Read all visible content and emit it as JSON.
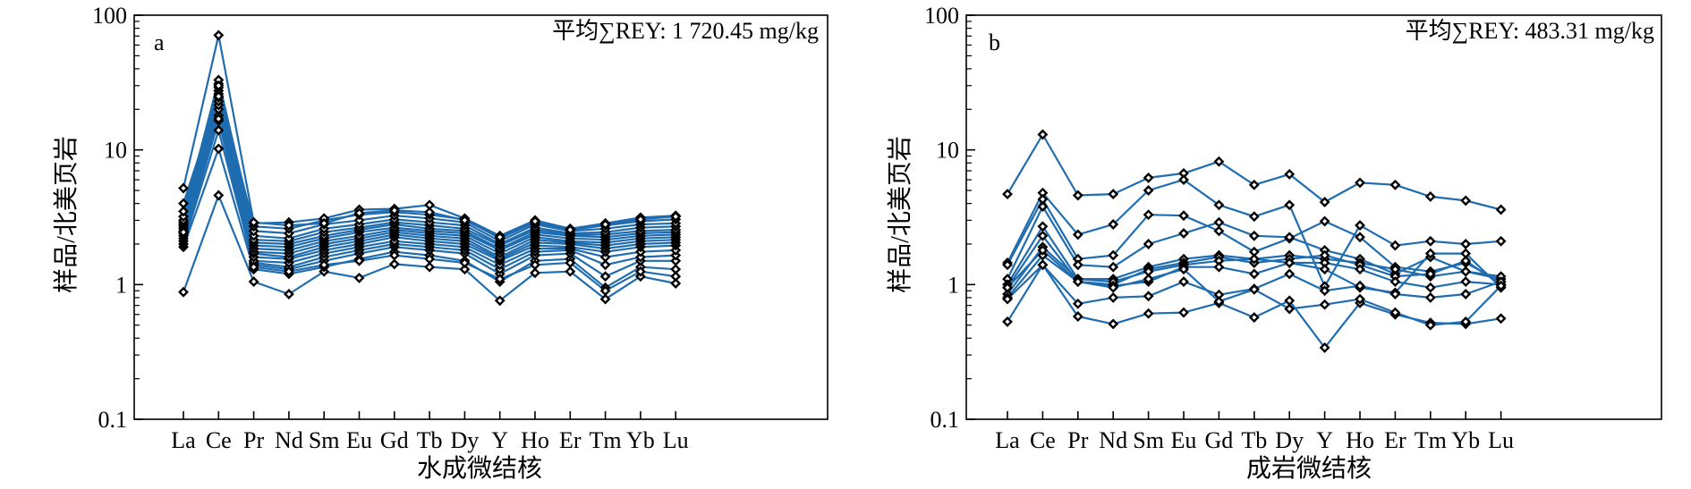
{
  "chart_data": [
    {
      "type": "line",
      "panel_tag": "a",
      "annotation": "平均∑REY: 1 720.45 mg/kg",
      "xlabel": "水成微结核",
      "ylabel": "样品/北美页岩",
      "yscale": "log",
      "ylim": [
        0.1,
        100
      ],
      "yticks": [
        "0.1",
        "1",
        "10",
        "100"
      ],
      "categories": [
        "La",
        "Ce",
        "Pr",
        "Nd",
        "Sm",
        "Eu",
        "Gd",
        "Tb",
        "Dy",
        "Y",
        "Ho",
        "Er",
        "Tm",
        "Yb",
        "Lu"
      ],
      "line_color": "#1f6db0",
      "series": [
        {
          "values": [
            0.88,
            4.6,
            1.05,
            0.85,
            1.25,
            1.12,
            1.42,
            1.35,
            1.3,
            0.76,
            1.22,
            1.25,
            0.78,
            1.15,
            1.02
          ]
        },
        {
          "values": [
            1.9,
            10.2,
            1.3,
            1.2,
            1.35,
            1.55,
            1.75,
            1.65,
            1.5,
            1.05,
            1.5,
            1.55,
            0.95,
            1.35,
            1.3
          ]
        },
        {
          "values": [
            2.0,
            14.0,
            1.4,
            1.3,
            1.5,
            1.7,
            1.9,
            1.8,
            1.7,
            1.2,
            1.65,
            1.7,
            1.15,
            1.5,
            1.5
          ]
        },
        {
          "values": [
            2.1,
            16.5,
            1.45,
            1.35,
            1.6,
            1.8,
            2.0,
            1.9,
            1.8,
            1.3,
            1.75,
            1.8,
            1.4,
            1.6,
            1.65
          ]
        },
        {
          "values": [
            2.2,
            18.0,
            1.5,
            1.45,
            1.7,
            1.9,
            2.1,
            2.0,
            1.9,
            1.4,
            1.85,
            1.85,
            1.6,
            1.75,
            1.8
          ]
        },
        {
          "values": [
            2.3,
            20.0,
            1.6,
            1.55,
            1.8,
            2.0,
            2.25,
            2.1,
            2.0,
            1.5,
            1.95,
            1.9,
            1.75,
            1.9,
            1.95
          ]
        },
        {
          "values": [
            2.4,
            21.5,
            1.7,
            1.6,
            1.9,
            2.1,
            2.35,
            2.2,
            2.1,
            1.55,
            2.05,
            2.0,
            1.85,
            2.0,
            2.05
          ]
        },
        {
          "values": [
            2.5,
            23.0,
            1.75,
            1.7,
            2.0,
            2.2,
            2.45,
            2.3,
            2.2,
            1.6,
            2.15,
            2.05,
            1.95,
            2.1,
            2.15
          ]
        },
        {
          "values": [
            2.6,
            24.5,
            1.85,
            1.8,
            2.1,
            2.3,
            2.55,
            2.4,
            2.3,
            1.7,
            2.25,
            2.1,
            2.05,
            2.2,
            2.25
          ]
        },
        {
          "values": [
            2.7,
            26.0,
            1.95,
            1.9,
            2.2,
            2.45,
            2.65,
            2.5,
            2.4,
            1.8,
            2.35,
            2.2,
            2.15,
            2.3,
            2.35
          ]
        },
        {
          "values": [
            2.8,
            27.5,
            2.05,
            2.0,
            2.3,
            2.55,
            2.8,
            2.6,
            2.5,
            1.85,
            2.45,
            2.3,
            2.25,
            2.4,
            2.45
          ]
        },
        {
          "values": [
            2.9,
            29.0,
            2.15,
            2.1,
            2.45,
            2.65,
            2.9,
            2.75,
            2.6,
            1.95,
            2.55,
            2.35,
            2.35,
            2.5,
            2.55
          ]
        },
        {
          "values": [
            3.0,
            31.0,
            2.3,
            2.2,
            2.6,
            2.8,
            3.05,
            2.9,
            2.75,
            2.0,
            2.65,
            2.4,
            2.45,
            2.65,
            2.7
          ]
        },
        {
          "values": [
            3.2,
            33.0,
            2.5,
            2.4,
            2.8,
            3.0,
            3.25,
            3.1,
            2.9,
            2.1,
            2.8,
            2.5,
            2.6,
            2.8,
            2.85
          ]
        },
        {
          "values": [
            3.5,
            30.0,
            2.7,
            2.6,
            3.0,
            3.3,
            3.45,
            3.3,
            3.05,
            2.2,
            2.9,
            2.55,
            2.75,
            2.95,
            3.05
          ]
        },
        {
          "values": [
            4.0,
            25.0,
            2.85,
            2.9,
            3.1,
            3.6,
            3.65,
            3.9,
            3.1,
            2.3,
            3.0,
            2.6,
            2.85,
            3.15,
            3.25
          ]
        },
        {
          "values": [
            5.2,
            71.0,
            2.9,
            2.75,
            2.85,
            3.4,
            3.55,
            3.45,
            3.0,
            2.25,
            2.95,
            2.55,
            2.8,
            3.05,
            3.2
          ]
        },
        {
          "values": [
            2.45,
            17.0,
            1.35,
            1.25,
            1.4,
            1.5,
            1.65,
            1.55,
            1.45,
            1.1,
            1.4,
            1.45,
            0.9,
            1.25,
            1.15
          ]
        }
      ]
    },
    {
      "type": "line",
      "panel_tag": "b",
      "annotation": "平均∑REY: 483.31 mg/kg",
      "xlabel": "成岩微结核",
      "ylabel": "样品/北美页岩",
      "yscale": "log",
      "ylim": [
        0.1,
        100
      ],
      "yticks": [
        "0.1",
        "1",
        "10",
        "100"
      ],
      "categories": [
        "La",
        "Ce",
        "Pr",
        "Nd",
        "Sm",
        "Eu",
        "Gd",
        "Tb",
        "Dy",
        "Y",
        "Ho",
        "Er",
        "Tm",
        "Yb",
        "Lu"
      ],
      "line_color": "#1f6db0",
      "series": [
        {
          "values": [
            4.7,
            13.0,
            4.6,
            4.7,
            6.2,
            6.7,
            8.2,
            5.5,
            6.6,
            4.1,
            5.7,
            5.5,
            4.5,
            4.2,
            3.6
          ]
        },
        {
          "values": [
            1.45,
            4.8,
            2.35,
            2.8,
            5.0,
            6.0,
            3.9,
            3.2,
            3.9,
            0.97,
            2.75,
            1.95,
            2.1,
            2.0,
            2.1
          ]
        },
        {
          "values": [
            1.4,
            4.3,
            1.55,
            1.65,
            3.3,
            3.25,
            2.5,
            1.75,
            2.2,
            2.95,
            2.25,
            1.35,
            1.25,
            1.45,
            1.05
          ]
        },
        {
          "values": [
            1.1,
            3.8,
            1.4,
            1.35,
            2.0,
            2.4,
            2.9,
            2.3,
            2.25,
            1.8,
            1.55,
            1.2,
            1.6,
            1.25,
            1.1
          ]
        },
        {
          "values": [
            1.0,
            2.7,
            1.1,
            1.1,
            1.35,
            1.55,
            1.65,
            1.55,
            1.65,
            1.55,
            1.45,
            1.3,
            1.15,
            1.25,
            1.15
          ]
        },
        {
          "values": [
            0.95,
            2.3,
            1.05,
            1.0,
            1.3,
            1.45,
            1.6,
            1.45,
            1.55,
            1.65,
            1.4,
            1.15,
            1.2,
            1.5,
            1.0
          ]
        },
        {
          "values": [
            0.85,
            1.9,
            1.1,
            1.05,
            1.25,
            1.4,
            1.5,
            1.55,
            1.45,
            1.45,
            1.3,
            1.05,
            0.95,
            1.05,
            1.0
          ]
        },
        {
          "values": [
            0.8,
            1.65,
            1.05,
            0.98,
            1.05,
            1.35,
            1.35,
            1.2,
            1.45,
            1.3,
            0.95,
            0.87,
            1.7,
            1.7,
            0.95
          ]
        },
        {
          "values": [
            0.78,
            1.4,
            0.72,
            0.8,
            0.82,
            1.05,
            0.84,
            0.93,
            1.2,
            0.9,
            0.98,
            0.85,
            0.8,
            0.85,
            1.05
          ]
        },
        {
          "values": [
            0.53,
            1.4,
            0.58,
            0.51,
            0.61,
            0.62,
            0.73,
            0.57,
            0.76,
            0.34,
            0.73,
            0.6,
            0.52,
            0.51,
            0.56
          ]
        },
        {
          "values": [
            0.95,
            1.8,
            1.05,
            0.95,
            1.1,
            1.3,
            0.75,
            0.92,
            0.66,
            0.71,
            0.78,
            0.62,
            0.5,
            0.53,
            0.98
          ]
        }
      ]
    }
  ]
}
